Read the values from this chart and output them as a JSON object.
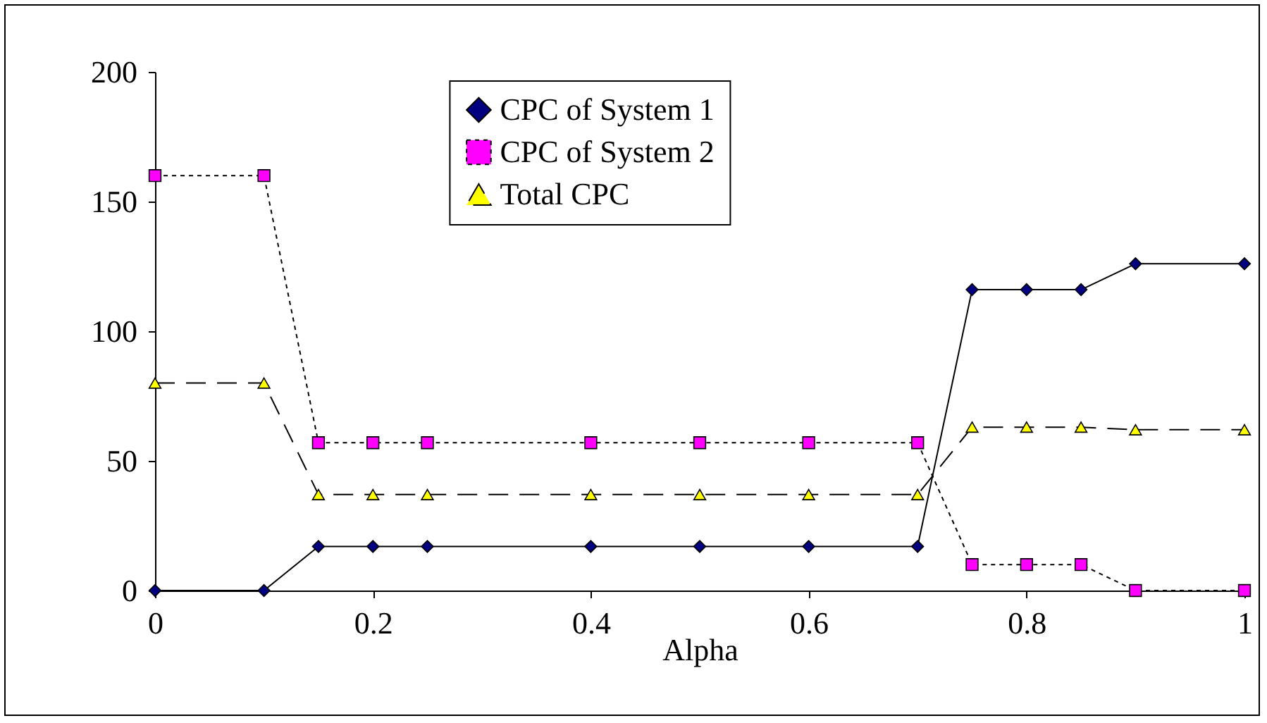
{
  "chart_data": {
    "type": "line",
    "xlabel": "Alpha",
    "x": [
      0,
      0.1,
      0.15,
      0.2,
      0.25,
      0.4,
      0.5,
      0.6,
      0.7,
      0.75,
      0.8,
      0.85,
      0.9,
      1
    ],
    "series": [
      {
        "name": "CPC of System 1",
        "color": "#000080",
        "marker": "diamond",
        "line_style": "solid",
        "values": [
          0,
          0,
          17,
          17,
          17,
          17,
          17,
          17,
          17,
          116,
          116,
          116,
          126,
          126
        ]
      },
      {
        "name": "CPC of System 2",
        "color": "#ff00ff",
        "marker": "square",
        "line_style": "dotted",
        "values": [
          160,
          160,
          57,
          57,
          57,
          57,
          57,
          57,
          57,
          10,
          10,
          10,
          0,
          0
        ]
      },
      {
        "name": "Total CPC",
        "color": "#ffff00",
        "marker": "triangle",
        "line_style": "dashed",
        "values": [
          80,
          80,
          37,
          37,
          37,
          37,
          37,
          37,
          37,
          63,
          63,
          63,
          62,
          62
        ]
      }
    ],
    "xlim": [
      0,
      1
    ],
    "xticks": [
      0,
      0.2,
      0.4,
      0.6,
      0.8,
      1
    ],
    "ylim": [
      0,
      200
    ],
    "yticks": [
      0,
      50,
      100,
      150,
      200
    ],
    "grid": false,
    "legend": "top"
  }
}
